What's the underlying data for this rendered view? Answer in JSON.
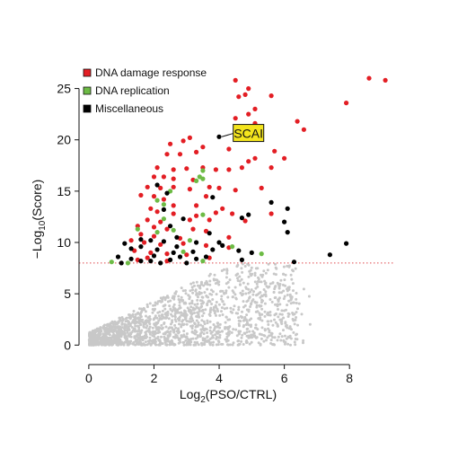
{
  "chart_data": {
    "type": "scatter",
    "title": "",
    "xlabel": {
      "base": "Log",
      "sub": "2",
      "rest": "(PSO/CTRL)"
    },
    "ylabel": {
      "pre": "−Log",
      "sub": "10",
      "rest": "(Score)"
    },
    "xlim": [
      -0.3,
      9.4
    ],
    "ylim": [
      -1.2,
      27.5
    ],
    "xticks": [
      0,
      2,
      4,
      6,
      8
    ],
    "yticks": [
      0,
      5,
      10,
      15,
      20,
      25
    ],
    "threshold": {
      "y": 8.0,
      "color": "#e0474c",
      "style": "dotted"
    },
    "grid": false,
    "legend": {
      "position": "top-left",
      "entries": [
        {
          "label": "DNA damage response",
          "color": "#e31e24"
        },
        {
          "label": "DNA replication",
          "color": "#6dbb45"
        },
        {
          "label": "Miscellaneous",
          "color": "#000000"
        }
      ]
    },
    "annotation": {
      "text": "SCAI",
      "x": 4.0,
      "y": 20.3,
      "label_x": 4.9,
      "label_y": 20.8,
      "fill": "#f4e51e"
    },
    "background_cloud": {
      "color": "#c8c8c8",
      "description": "dense grey points below threshold",
      "count": 1800,
      "seed": 7
    },
    "series": [
      {
        "name": "DNA damage response",
        "color": "#e31e24",
        "points": [
          [
            4.5,
            25.8
          ],
          [
            4.9,
            25.0
          ],
          [
            4.6,
            24.2
          ],
          [
            4.8,
            24.4
          ],
          [
            5.6,
            24.3
          ],
          [
            5.1,
            23.0
          ],
          [
            4.5,
            22.1
          ],
          [
            4.9,
            22.5
          ],
          [
            5.1,
            21.6
          ],
          [
            4.6,
            21.0
          ],
          [
            5.3,
            20.6
          ],
          [
            6.4,
            21.8
          ],
          [
            6.6,
            21.0
          ],
          [
            8.6,
            26.0
          ],
          [
            9.1,
            25.8
          ],
          [
            7.9,
            23.6
          ],
          [
            2.5,
            19.6
          ],
          [
            2.9,
            19.9
          ],
          [
            3.1,
            20.2
          ],
          [
            2.4,
            18.6
          ],
          [
            2.8,
            18.6
          ],
          [
            3.3,
            18.8
          ],
          [
            3.5,
            19.3
          ],
          [
            4.3,
            19.1
          ],
          [
            5.7,
            18.9
          ],
          [
            6.0,
            18.2
          ],
          [
            5.1,
            18.2
          ],
          [
            4.9,
            17.9
          ],
          [
            2.1,
            17.3
          ],
          [
            2.6,
            17.1
          ],
          [
            3.0,
            17.2
          ],
          [
            3.5,
            17.3
          ],
          [
            3.9,
            17.1
          ],
          [
            4.3,
            17.1
          ],
          [
            4.7,
            17.3
          ],
          [
            5.6,
            17.3
          ],
          [
            2.0,
            16.4
          ],
          [
            2.3,
            16.4
          ],
          [
            2.6,
            16.2
          ],
          [
            3.2,
            16.1
          ],
          [
            1.8,
            15.4
          ],
          [
            2.2,
            15.3
          ],
          [
            2.6,
            15.4
          ],
          [
            3.1,
            15.2
          ],
          [
            3.7,
            15.4
          ],
          [
            4.0,
            15.3
          ],
          [
            4.5,
            15.1
          ],
          [
            5.3,
            15.3
          ],
          [
            1.6,
            14.6
          ],
          [
            2.0,
            14.5
          ],
          [
            2.3,
            14.2
          ],
          [
            3.6,
            14.5
          ],
          [
            2.6,
            13.6
          ],
          [
            1.9,
            13.3
          ],
          [
            3.3,
            13.6
          ],
          [
            4.1,
            13.3
          ],
          [
            2.1,
            13.0
          ],
          [
            2.6,
            12.8
          ],
          [
            3.3,
            12.6
          ],
          [
            3.9,
            12.9
          ],
          [
            4.4,
            12.8
          ],
          [
            5.6,
            12.8
          ],
          [
            1.8,
            12.2
          ],
          [
            2.2,
            12.0
          ],
          [
            3.1,
            12.2
          ],
          [
            3.7,
            12.2
          ],
          [
            4.8,
            12.1
          ],
          [
            1.5,
            11.6
          ],
          [
            2.0,
            11.5
          ],
          [
            2.4,
            11.3
          ],
          [
            3.2,
            11.3
          ],
          [
            3.6,
            11.1
          ],
          [
            1.6,
            10.8
          ],
          [
            2.0,
            10.6
          ],
          [
            2.8,
            10.4
          ],
          [
            4.3,
            10.5
          ],
          [
            1.3,
            10.2
          ],
          [
            1.7,
            10.0
          ],
          [
            2.2,
            9.8
          ],
          [
            2.9,
            9.9
          ],
          [
            3.6,
            9.7
          ],
          [
            4.3,
            9.5
          ],
          [
            1.4,
            9.2
          ],
          [
            1.9,
            9.0
          ],
          [
            2.4,
            8.9
          ],
          [
            3.0,
            8.8
          ],
          [
            3.7,
            8.5
          ],
          [
            1.8,
            8.5
          ],
          [
            2.4,
            8.2
          ],
          [
            1.5,
            8.3
          ]
        ]
      },
      {
        "name": "DNA replication",
        "color": "#6dbb45",
        "points": [
          [
            3.5,
            17.0
          ],
          [
            3.4,
            16.4
          ],
          [
            3.3,
            16.0
          ],
          [
            3.5,
            16.2
          ],
          [
            2.5,
            15.0
          ],
          [
            2.1,
            14.1
          ],
          [
            2.3,
            13.7
          ],
          [
            3.5,
            12.7
          ],
          [
            2.3,
            12.3
          ],
          [
            2.6,
            11.2
          ],
          [
            2.1,
            11.0
          ],
          [
            1.5,
            11.3
          ],
          [
            3.1,
            10.2
          ],
          [
            0.7,
            8.1
          ],
          [
            2.9,
            9.1
          ],
          [
            4.4,
            9.6
          ],
          [
            5.3,
            8.9
          ],
          [
            1.2,
            8.0
          ],
          [
            3.5,
            8.2
          ]
        ]
      },
      {
        "name": "Miscellaneous",
        "color": "#000000",
        "points": [
          [
            4.0,
            20.3
          ],
          [
            2.1,
            15.6
          ],
          [
            2.4,
            14.8
          ],
          [
            3.8,
            14.4
          ],
          [
            2.3,
            13.2
          ],
          [
            5.6,
            13.9
          ],
          [
            6.1,
            13.3
          ],
          [
            6.0,
            12.0
          ],
          [
            4.7,
            12.4
          ],
          [
            4.9,
            12.7
          ],
          [
            2.9,
            12.3
          ],
          [
            6.1,
            11.0
          ],
          [
            2.5,
            11.6
          ],
          [
            3.7,
            10.9
          ],
          [
            1.6,
            10.3
          ],
          [
            2.7,
            10.5
          ],
          [
            3.3,
            10.0
          ],
          [
            2.3,
            10.1
          ],
          [
            1.9,
            10.2
          ],
          [
            1.1,
            9.9
          ],
          [
            1.3,
            9.4
          ],
          [
            1.6,
            9.6
          ],
          [
            2.1,
            9.3
          ],
          [
            2.6,
            9.0
          ],
          [
            3.2,
            9.1
          ],
          [
            3.8,
            9.3
          ],
          [
            4.1,
            9.7
          ],
          [
            4.6,
            9.2
          ],
          [
            5.0,
            9.0
          ],
          [
            2.0,
            8.7
          ],
          [
            2.8,
            8.6
          ],
          [
            3.3,
            8.4
          ],
          [
            2.5,
            8.3
          ],
          [
            1.6,
            8.2
          ],
          [
            1.3,
            8.4
          ],
          [
            7.9,
            9.9
          ],
          [
            7.4,
            8.8
          ],
          [
            6.3,
            8.1
          ],
          [
            3.0,
            8.0
          ],
          [
            2.2,
            8.0
          ],
          [
            1.0,
            8.0
          ],
          [
            4.7,
            8.3
          ],
          [
            3.6,
            8.6
          ],
          [
            1.9,
            8.2
          ],
          [
            0.9,
            8.6
          ],
          [
            2.7,
            9.6
          ],
          [
            4.0,
            10.0
          ]
        ]
      }
    ]
  }
}
